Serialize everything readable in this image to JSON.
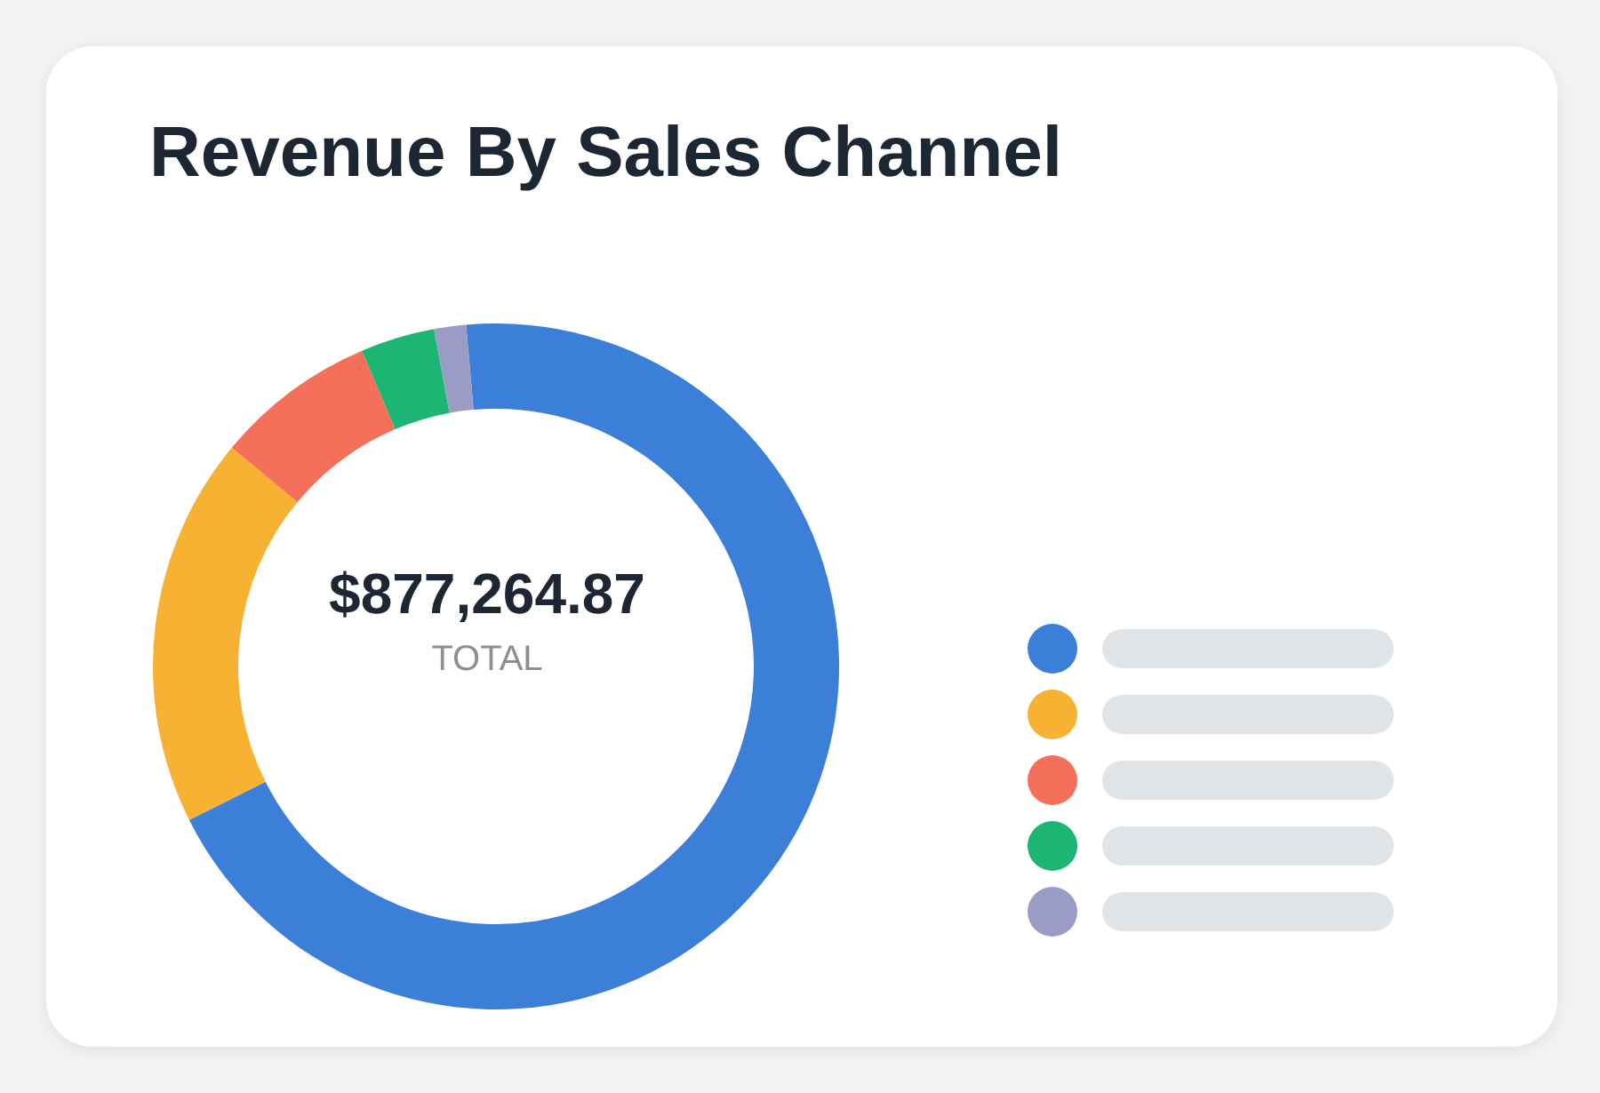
{
  "chart_data": {
    "type": "donut",
    "title": "Revenue By Sales Channel",
    "categories": [
      null,
      null,
      null,
      null,
      null
    ],
    "values": [
      69,
      18.4,
      7.6,
      3.5,
      1.5
    ],
    "colors": [
      "#3b7fd9",
      "#f7b133",
      "#f4705a",
      "#1cb573",
      "#9b9cc6"
    ],
    "annotations": [
      "$877,264.87",
      "TOTAL"
    ]
  }
}
